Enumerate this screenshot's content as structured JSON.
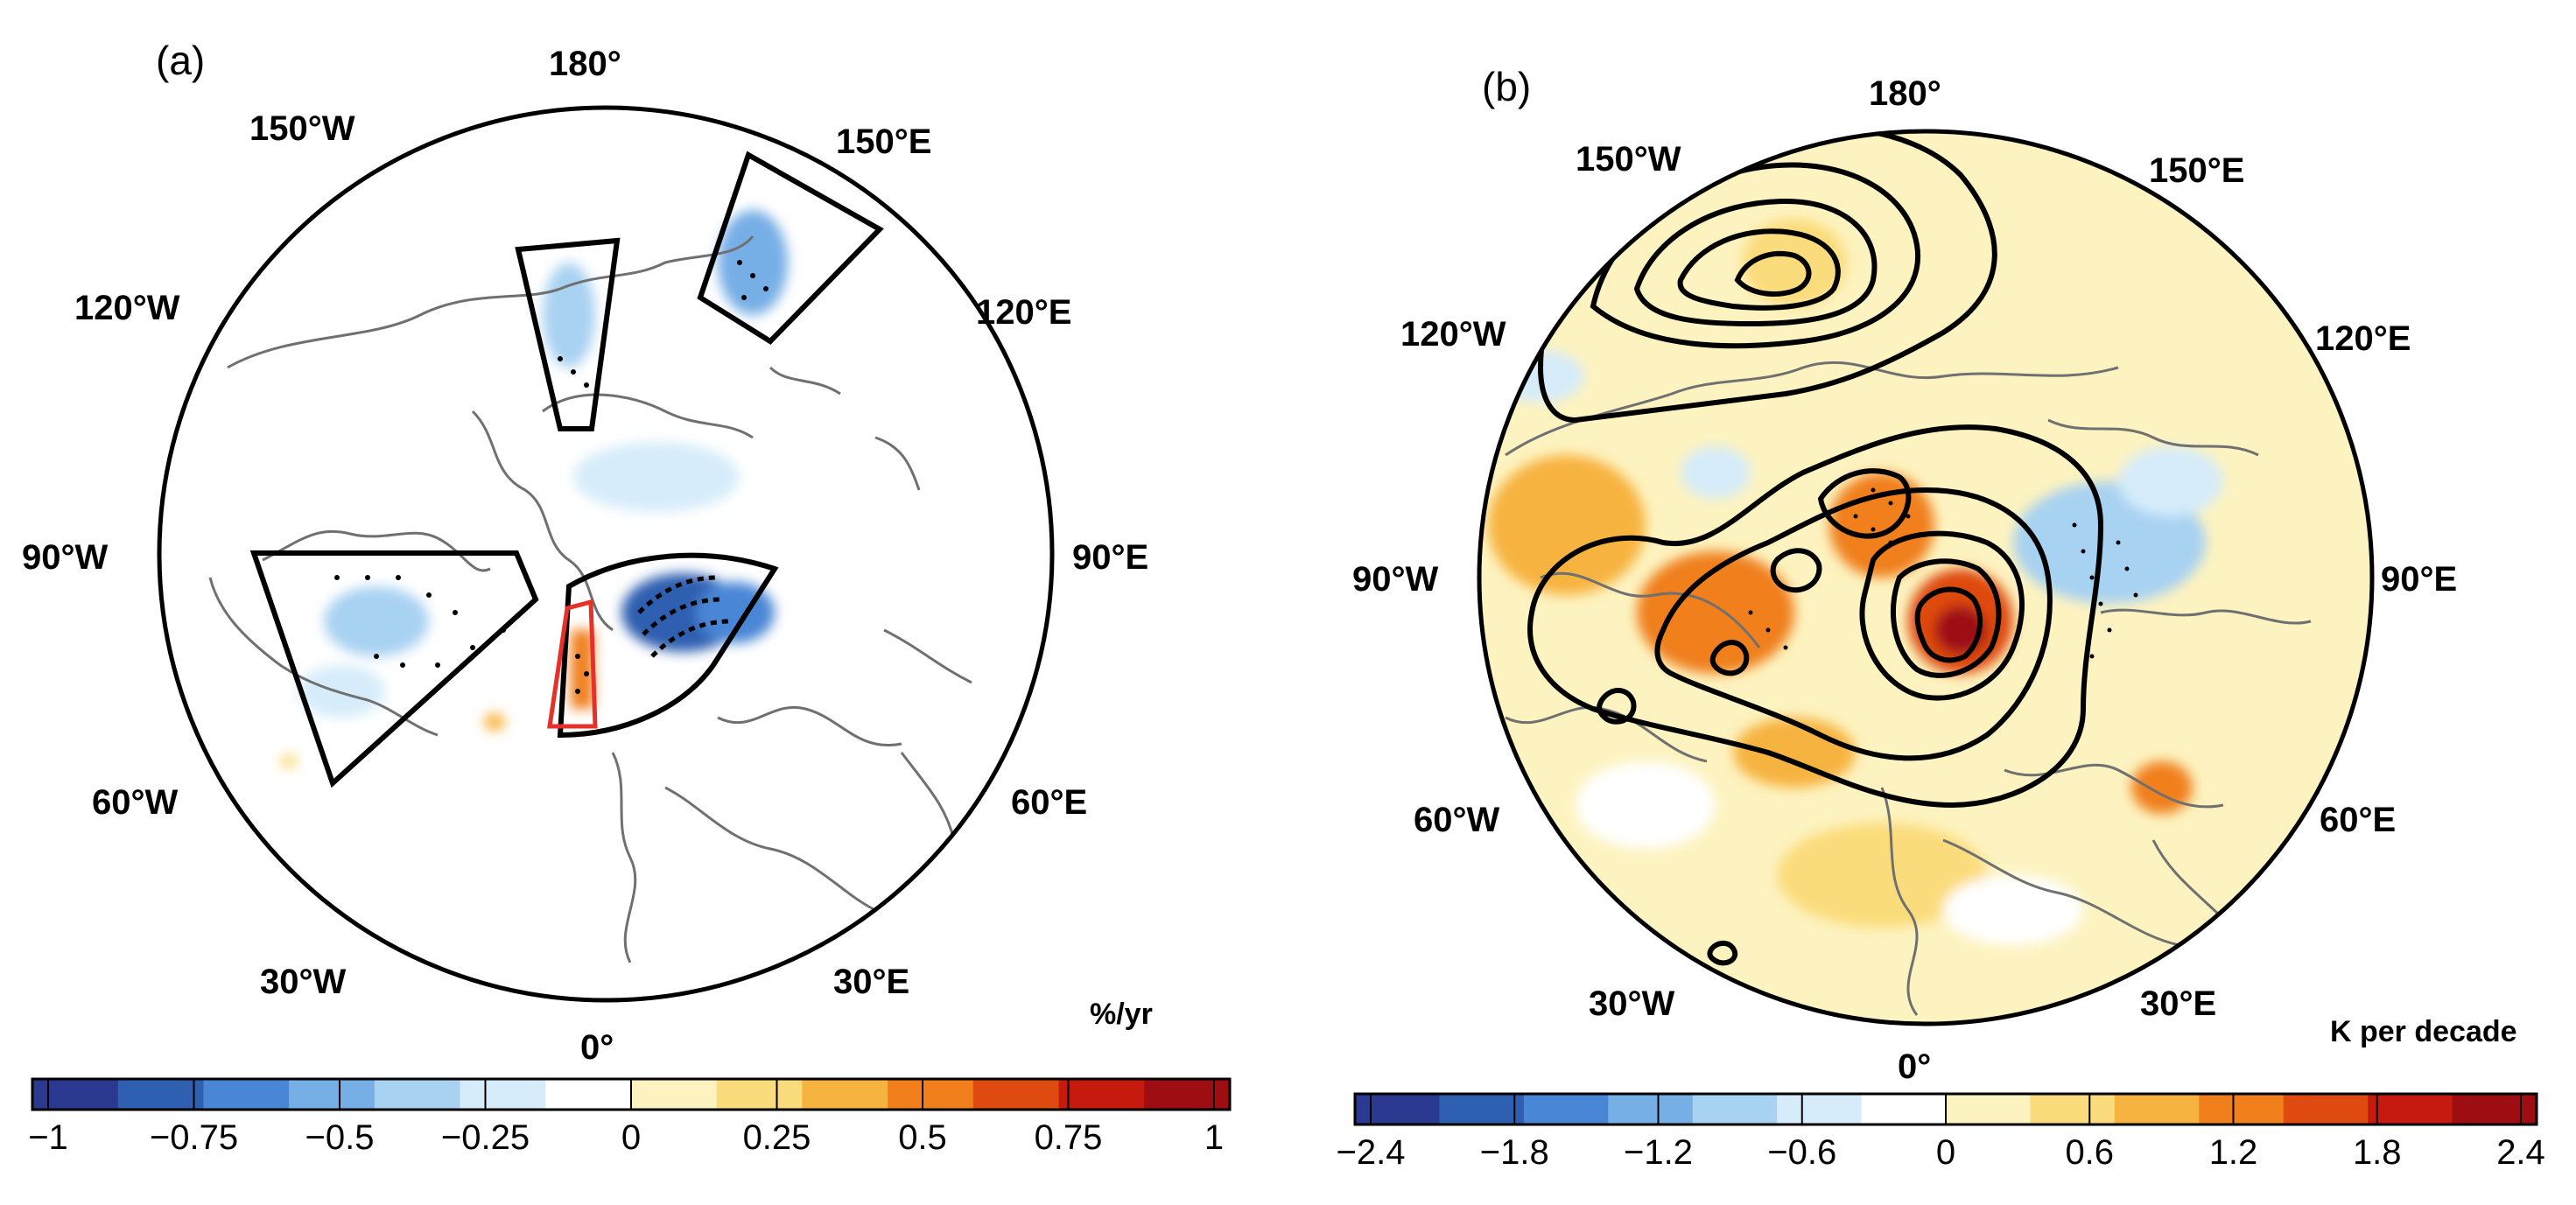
{
  "panels": [
    {
      "id": "a",
      "label": "(a)",
      "unit": "%/yr",
      "lon_labels": [
        "180°",
        "150°E",
        "120°E",
        "90°E",
        "60°E",
        "30°E",
        "0°",
        "30°W",
        "60°W",
        "90°W",
        "120°W",
        "150°W"
      ],
      "colorbar": {
        "ticks": [
          "−1",
          "−0.75",
          "−0.5",
          "−0.25",
          "0",
          "0.25",
          "0.5",
          "0.75",
          "1"
        ],
        "min": -1,
        "max": 1
      }
    },
    {
      "id": "b",
      "label": "(b)",
      "unit": "K per decade",
      "lon_labels": [
        "180°",
        "150°E",
        "120°E",
        "90°E",
        "60°E",
        "30°E",
        "0°",
        "30°W",
        "60°W",
        "90°W",
        "120°W",
        "150°W"
      ],
      "colorbar": {
        "ticks": [
          "−2.4",
          "−1.8",
          "−1.2",
          "−0.6",
          "0",
          "0.6",
          "1.2",
          "1.8",
          "2.4"
        ],
        "min": -2.4,
        "max": 2.4
      }
    }
  ],
  "colors": {
    "scale": [
      "#2b3990",
      "#2f5fb0",
      "#4a86d6",
      "#76aee6",
      "#a8d2f2",
      "#d6ecfa",
      "#ffffff",
      "#fdf3c0",
      "#fbdc7c",
      "#f7b340",
      "#f07f1c",
      "#df4a10",
      "#c71a0f",
      "#9d0d12"
    ],
    "coast": "#707070",
    "box_highlight": "#e8302a"
  }
}
